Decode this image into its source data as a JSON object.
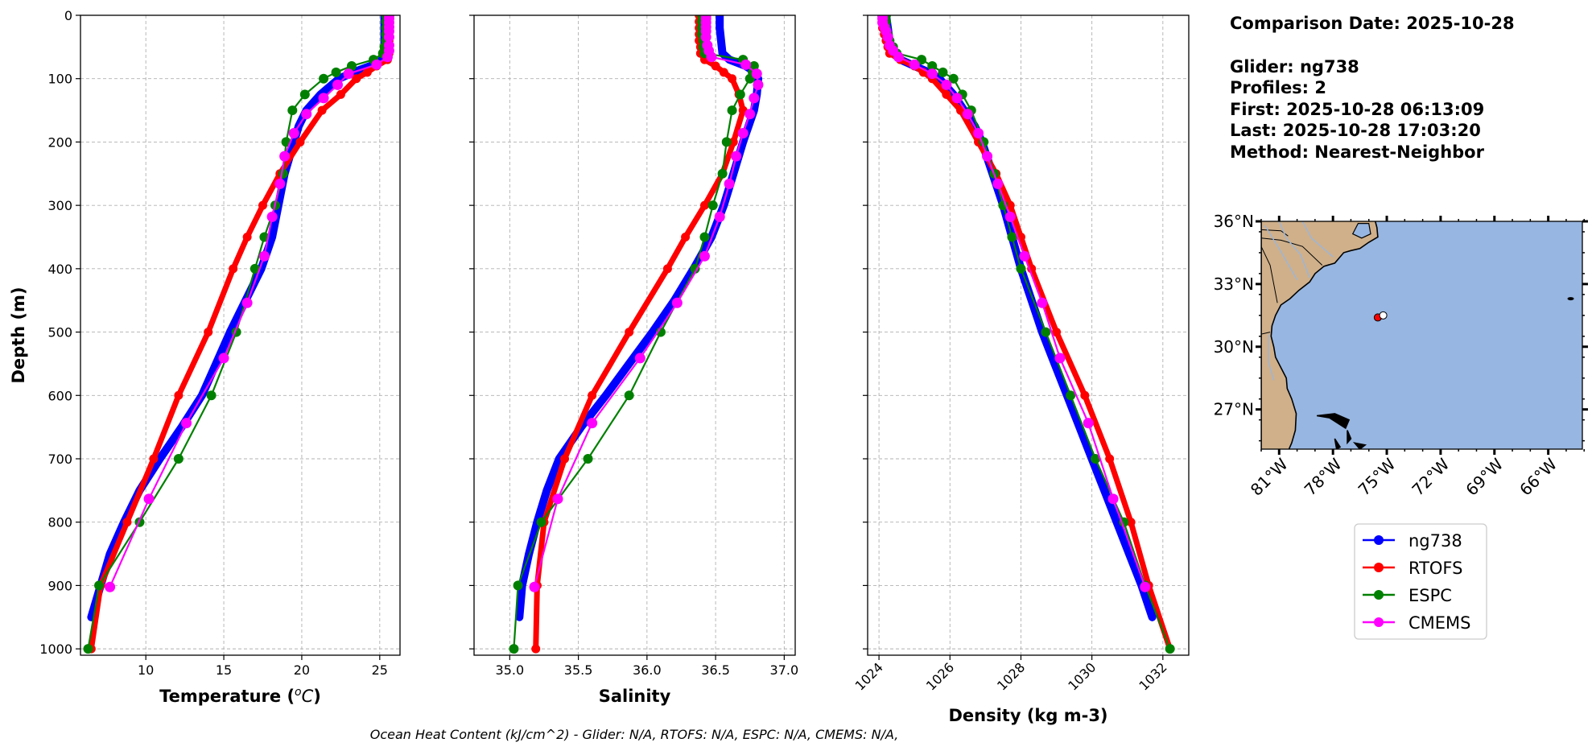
{
  "info": {
    "comparison_date": "Comparison Date: 2025-10-28",
    "glider": "Glider: ng738",
    "profiles": "Profiles: 2",
    "first": "First: 2025-10-28 06:13:09",
    "last": "Last: 2025-10-28 17:03:20",
    "method": "Method: Nearest-Neighbor"
  },
  "caption": "Ocean Heat Content (kJ/cm^2) - Glider: N/A,  RTOFS: N/A,  ESPC: N/A,  CMEMS: N/A,",
  "legend": [
    {
      "name": "ng738",
      "color": "#0000ff"
    },
    {
      "name": "RTOFS",
      "color": "#ff0000"
    },
    {
      "name": "ESPC",
      "color": "#008000"
    },
    {
      "name": "CMEMS",
      "color": "#ff00ff"
    }
  ],
  "map": {
    "lon_range": [
      -82.0,
      -64.1
    ],
    "lat_range": [
      25.1,
      36.0
    ],
    "lat_ticks": [
      {
        "value": 36,
        "label": "36°N"
      },
      {
        "value": 33,
        "label": "33°N"
      },
      {
        "value": 30,
        "label": "30°N"
      },
      {
        "value": 27,
        "label": "27°N"
      }
    ],
    "lon_ticks": [
      {
        "value": -81,
        "label": "81°W"
      },
      {
        "value": -78,
        "label": "78°W"
      },
      {
        "value": -75,
        "label": "75°W"
      },
      {
        "value": -72,
        "label": "72°W"
      },
      {
        "value": -69,
        "label": "69°W"
      },
      {
        "value": -66,
        "label": "66°W"
      }
    ],
    "colors": {
      "ocean": "#97b6e1",
      "land": "#cfb08a",
      "river": "#97b6e1"
    },
    "markers": [
      {
        "name": "model-location",
        "lon": -75.5,
        "lat": 31.4,
        "color": "#ff0000"
      },
      {
        "name": "glider-location",
        "lon": -75.2,
        "lat": 31.5,
        "color": "#ffffff"
      }
    ]
  },
  "chart_data": [
    {
      "type": "line",
      "id": "temperature",
      "xlabel_parts": [
        "Temperature (",
        "o",
        "C",
        ")"
      ],
      "ylabel": "Depth (m)",
      "xlim": [
        5.81,
        26.3
      ],
      "ylim": [
        1010,
        0
      ],
      "grid": true,
      "xticks": [
        {
          "value": 10,
          "label": "10"
        },
        {
          "value": 15,
          "label": "15"
        },
        {
          "value": 20,
          "label": "20"
        },
        {
          "value": 25,
          "label": "25"
        }
      ],
      "yticks": [
        {
          "value": 0,
          "label": "0"
        },
        {
          "value": 100,
          "label": "100"
        },
        {
          "value": 200,
          "label": "200"
        },
        {
          "value": 300,
          "label": "300"
        },
        {
          "value": 400,
          "label": "400"
        },
        {
          "value": 500,
          "label": "500"
        },
        {
          "value": 600,
          "label": "600"
        },
        {
          "value": 700,
          "label": "700"
        },
        {
          "value": 800,
          "label": "800"
        },
        {
          "value": 900,
          "label": "900"
        },
        {
          "value": 1000,
          "label": "1000"
        }
      ],
      "series": [
        {
          "name": "ng738",
          "color": "#0000ff",
          "depth": [
            0,
            20,
            40,
            60,
            70,
            80,
            90,
            100,
            125,
            150,
            175,
            200,
            250,
            300,
            350,
            400,
            450,
            500,
            550,
            600,
            650,
            700,
            750,
            800,
            850,
            900,
            950
          ],
          "values": [
            25.3,
            25.3,
            25.3,
            25.3,
            25.2,
            24.4,
            23.3,
            22.4,
            21.2,
            20.3,
            19.8,
            19.5,
            18.9,
            18.5,
            18.1,
            17.4,
            16.4,
            15.4,
            14.5,
            13.6,
            12.3,
            10.9,
            9.6,
            8.6,
            7.7,
            7.1,
            6.5
          ]
        },
        {
          "name": "RTOFS",
          "color": "#ff0000",
          "depth": [
            0,
            10,
            20,
            30,
            40,
            50,
            60,
            70,
            80,
            90,
            100,
            125,
            150,
            200,
            250,
            300,
            350,
            400,
            500,
            600,
            700,
            800,
            900,
            1000
          ],
          "values": [
            25.6,
            25.6,
            25.6,
            25.6,
            25.6,
            25.6,
            25.6,
            25.5,
            24.8,
            24.2,
            23.5,
            22.5,
            21.3,
            19.9,
            18.6,
            17.5,
            16.5,
            15.6,
            14.0,
            12.1,
            10.5,
            8.8,
            7.1,
            6.5
          ]
        },
        {
          "name": "ESPC",
          "color": "#008000",
          "depth": [
            0,
            10,
            20,
            30,
            40,
            50,
            60,
            70,
            80,
            90,
            100,
            125,
            150,
            200,
            250,
            300,
            350,
            400,
            500,
            600,
            700,
            800,
            900,
            1000
          ],
          "values": [
            25.4,
            25.4,
            25.4,
            25.4,
            25.4,
            25.3,
            25.2,
            24.6,
            23.2,
            22.2,
            21.4,
            20.2,
            19.4,
            19.0,
            18.8,
            18.3,
            17.6,
            17.0,
            15.8,
            14.2,
            12.1,
            9.6,
            7.0,
            6.3
          ]
        },
        {
          "name": "CMEMS",
          "color": "#ff00ff",
          "depth": [
            0.5,
            5.1,
            11.4,
            18.5,
            25.2,
            34.4,
            47.4,
            55.8,
            65.8,
            77.9,
            92.3,
            109.7,
            130.7,
            155.9,
            186.1,
            222.5,
            266.0,
            318.1,
            380.2,
            453.9,
            541.1,
            643.6,
            763.3,
            902.3
          ],
          "values": [
            25.6,
            25.6,
            25.6,
            25.6,
            25.6,
            25.6,
            25.6,
            25.6,
            25.5,
            24.8,
            23.0,
            22.3,
            21.4,
            20.3,
            19.5,
            18.9,
            18.6,
            18.1,
            17.6,
            16.5,
            15.0,
            12.6,
            10.2,
            7.7
          ]
        }
      ]
    },
    {
      "type": "line",
      "id": "salinity",
      "xlabel": "Salinity",
      "xlim": [
        34.74,
        37.08
      ],
      "ylim": [
        1010,
        0
      ],
      "grid": true,
      "xticks": [
        {
          "value": 35.0,
          "label": "35.0"
        },
        {
          "value": 35.5,
          "label": "35.5"
        },
        {
          "value": 36.0,
          "label": "36.0"
        },
        {
          "value": 36.5,
          "label": "36.5"
        },
        {
          "value": 37.0,
          "label": "37.0"
        }
      ],
      "series": [
        {
          "name": "ng738",
          "color": "#0000ff",
          "depth": [
            0,
            20,
            40,
            60,
            70,
            80,
            90,
            100,
            125,
            150,
            175,
            200,
            250,
            300,
            350,
            400,
            450,
            500,
            550,
            600,
            650,
            700,
            750,
            800,
            850,
            900,
            950
          ],
          "values": [
            36.53,
            36.53,
            36.54,
            36.55,
            36.6,
            36.72,
            36.79,
            36.81,
            36.8,
            36.78,
            36.74,
            36.7,
            36.63,
            36.56,
            36.47,
            36.34,
            36.2,
            36.04,
            35.87,
            35.7,
            35.52,
            35.36,
            35.27,
            35.2,
            35.14,
            35.09,
            35.07
          ]
        },
        {
          "name": "RTOFS",
          "color": "#ff0000",
          "depth": [
            0,
            10,
            20,
            30,
            40,
            50,
            60,
            70,
            80,
            90,
            100,
            125,
            150,
            200,
            250,
            300,
            350,
            400,
            500,
            600,
            700,
            800,
            900,
            1000
          ],
          "values": [
            36.38,
            36.38,
            36.38,
            36.38,
            36.38,
            36.39,
            36.39,
            36.42,
            36.5,
            36.56,
            36.62,
            36.67,
            36.7,
            36.63,
            36.55,
            36.42,
            36.28,
            36.15,
            35.87,
            35.6,
            35.4,
            35.25,
            35.2,
            35.19
          ]
        },
        {
          "name": "ESPC",
          "color": "#008000",
          "depth": [
            0,
            10,
            20,
            30,
            40,
            50,
            60,
            70,
            80,
            90,
            100,
            125,
            150,
            200,
            250,
            300,
            350,
            400,
            500,
            600,
            700,
            800,
            900,
            1000
          ],
          "values": [
            36.4,
            36.4,
            36.4,
            36.4,
            36.41,
            36.41,
            36.42,
            36.7,
            36.78,
            36.77,
            36.75,
            36.68,
            36.62,
            36.58,
            36.55,
            36.48,
            36.42,
            36.35,
            36.1,
            35.87,
            35.57,
            35.23,
            35.06,
            35.03
          ]
        },
        {
          "name": "CMEMS",
          "color": "#ff00ff",
          "depth": [
            0.5,
            5.1,
            11.4,
            18.5,
            25.2,
            34.4,
            47.4,
            55.8,
            65.8,
            77.9,
            92.3,
            109.7,
            130.7,
            155.9,
            186.1,
            222.5,
            266.0,
            318.1,
            380.2,
            453.9,
            541.1,
            643.6,
            763.3,
            902.3
          ],
          "values": [
            36.43,
            36.43,
            36.43,
            36.43,
            36.43,
            36.43,
            36.44,
            36.45,
            36.47,
            36.72,
            36.8,
            36.81,
            36.78,
            36.75,
            36.7,
            36.65,
            36.6,
            36.53,
            36.42,
            36.22,
            35.95,
            35.6,
            35.35,
            35.18
          ]
        }
      ]
    },
    {
      "type": "line",
      "id": "density",
      "xlabel": "Density (kg m-3)",
      "xlim": [
        1023.68,
        1032.73
      ],
      "ylim": [
        1010,
        0
      ],
      "grid": true,
      "xticks": [
        {
          "value": 1024,
          "label": "1024"
        },
        {
          "value": 1026,
          "label": "1026"
        },
        {
          "value": 1028,
          "label": "1028"
        },
        {
          "value": 1030,
          "label": "1030"
        },
        {
          "value": 1032,
          "label": "1032"
        }
      ],
      "series": [
        {
          "name": "ng738",
          "color": "#0000ff",
          "depth": [
            0,
            20,
            40,
            60,
            70,
            80,
            90,
            100,
            125,
            150,
            175,
            200,
            250,
            300,
            350,
            400,
            450,
            500,
            550,
            600,
            650,
            700,
            750,
            800,
            850,
            900,
            950
          ],
          "values": [
            1024.2,
            1024.25,
            1024.3,
            1024.4,
            1024.6,
            1025.0,
            1025.4,
            1025.7,
            1026.1,
            1026.4,
            1026.7,
            1026.9,
            1027.2,
            1027.5,
            1027.75,
            1028.0,
            1028.3,
            1028.6,
            1028.95,
            1029.3,
            1029.65,
            1030.0,
            1030.35,
            1030.7,
            1031.05,
            1031.4,
            1031.7
          ]
        },
        {
          "name": "RTOFS",
          "color": "#ff0000",
          "depth": [
            0,
            10,
            20,
            30,
            40,
            50,
            60,
            70,
            80,
            90,
            100,
            125,
            150,
            200,
            250,
            300,
            350,
            400,
            500,
            600,
            700,
            800,
            900,
            1000
          ],
          "values": [
            1024.1,
            1024.1,
            1024.1,
            1024.15,
            1024.2,
            1024.25,
            1024.3,
            1024.6,
            1025.0,
            1025.25,
            1025.5,
            1025.9,
            1026.3,
            1026.8,
            1027.3,
            1027.7,
            1028.0,
            1028.3,
            1029.0,
            1029.8,
            1030.5,
            1031.1,
            1031.6,
            1032.2
          ]
        },
        {
          "name": "ESPC",
          "color": "#008000",
          "depth": [
            0,
            10,
            20,
            30,
            40,
            50,
            60,
            70,
            80,
            90,
            100,
            125,
            150,
            200,
            250,
            300,
            350,
            400,
            500,
            600,
            700,
            800,
            900,
            1000
          ],
          "values": [
            1024.2,
            1024.2,
            1024.2,
            1024.25,
            1024.3,
            1024.4,
            1024.5,
            1025.2,
            1025.5,
            1025.8,
            1026.1,
            1026.35,
            1026.6,
            1026.95,
            1027.25,
            1027.5,
            1027.75,
            1028.0,
            1028.7,
            1029.4,
            1030.1,
            1030.9,
            1031.5,
            1032.2
          ]
        },
        {
          "name": "CMEMS",
          "color": "#ff00ff",
          "depth": [
            0.5,
            5.1,
            11.4,
            18.5,
            25.2,
            34.4,
            47.4,
            55.8,
            65.8,
            77.9,
            92.3,
            109.7,
            130.7,
            155.9,
            186.1,
            222.5,
            266.0,
            318.1,
            380.2,
            453.9,
            541.1,
            643.6,
            763.3,
            902.3
          ],
          "values": [
            1024.1,
            1024.1,
            1024.1,
            1024.15,
            1024.2,
            1024.25,
            1024.3,
            1024.4,
            1024.55,
            1025.0,
            1025.5,
            1025.9,
            1026.2,
            1026.5,
            1026.8,
            1027.05,
            1027.35,
            1027.7,
            1028.1,
            1028.6,
            1029.1,
            1029.9,
            1030.6,
            1031.5
          ]
        }
      ]
    }
  ]
}
